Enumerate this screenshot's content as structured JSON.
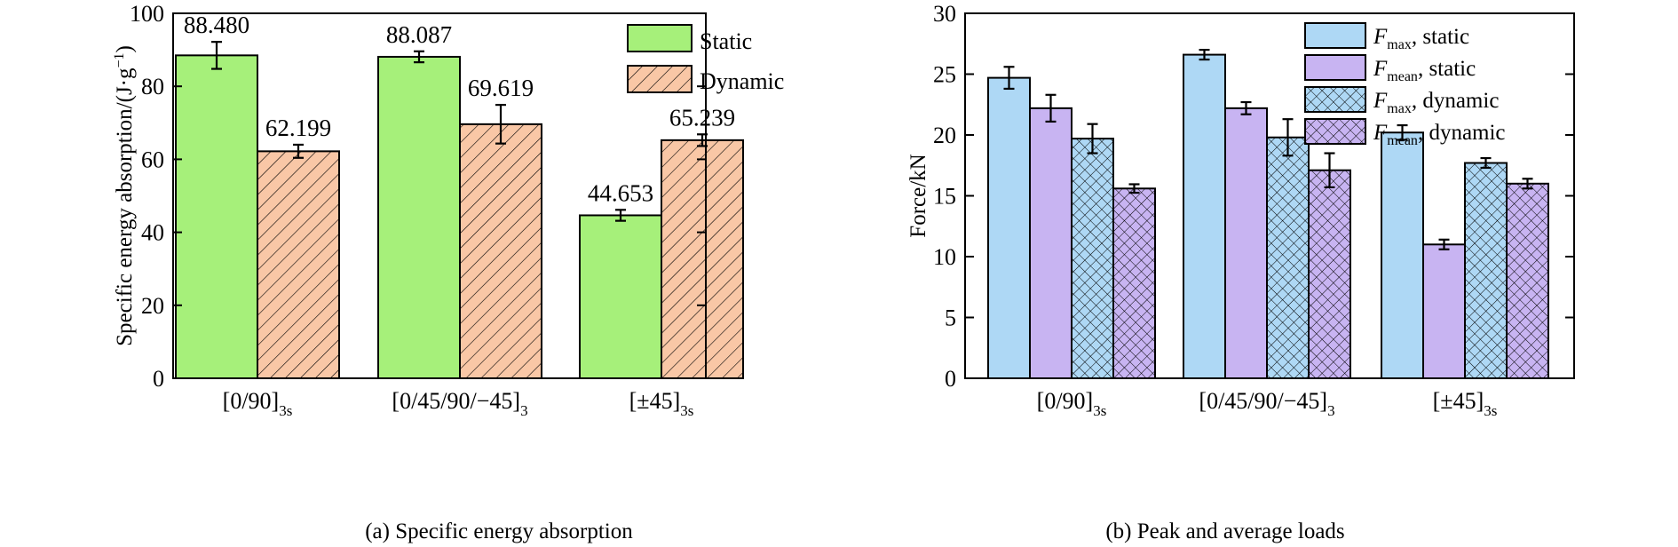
{
  "colors": {
    "static_green": "#a6f07a",
    "dynamic_orange": "#f9c7a6",
    "fmax_static_blue": "#aed8f5",
    "fmean_static_purple": "#c8b4f2",
    "fmax_dynamic_blue": "#aed8f5",
    "fmean_dynamic_purple": "#c8b4f2",
    "hatch_stroke": "#000000"
  },
  "chart_data": [
    {
      "type": "bar",
      "caption": "(a) Specific energy absorption",
      "ylabel": "Specific energy absorption/(J·g",
      "ylabel_sup": "−1",
      "ylabel_close": ")",
      "ylim": [
        0,
        100
      ],
      "yticks": [
        "0",
        "20",
        "40",
        "60",
        "80",
        "100"
      ],
      "ytick_values": [
        0,
        20,
        40,
        60,
        80,
        100
      ],
      "legend_position": "top-right",
      "categories": [
        {
          "main": "[0/90]",
          "sub": "3s"
        },
        {
          "main": "[0/45/90/−45]",
          "sub": "3"
        },
        {
          "main": "[±45]",
          "sub": "3s"
        }
      ],
      "series": [
        {
          "name": "Static",
          "values": [
            88.48,
            88.087,
            44.653
          ],
          "errors": [
            3.7,
            1.5,
            1.5
          ],
          "labels": [
            "88.480",
            "88.087",
            "44.653"
          ],
          "fill": "solid"
        },
        {
          "name": "Dynamic",
          "values": [
            62.199,
            69.619,
            65.239
          ],
          "errors": [
            1.8,
            5.3,
            1.6
          ],
          "labels": [
            "62.199",
            "69.619",
            "65.239"
          ],
          "fill": "hatch-diag"
        }
      ]
    },
    {
      "type": "bar",
      "caption": "(b) Peak and average loads",
      "ylabel": "Force/kN",
      "ylim": [
        0,
        30
      ],
      "yticks": [
        "0",
        "5",
        "10",
        "15",
        "20",
        "25",
        "30"
      ],
      "ytick_values": [
        0,
        5,
        10,
        15,
        20,
        25,
        30
      ],
      "legend_position": "top-right",
      "categories": [
        {
          "main": "[0/90]",
          "sub": "3s"
        },
        {
          "main": "[0/45/90/−45]",
          "sub": "3"
        },
        {
          "main": "[±45]",
          "sub": "3s"
        }
      ],
      "series": [
        {
          "name_main": "F",
          "name_sub": "max",
          "name_rest": ", static",
          "values": [
            24.7,
            26.6,
            20.2
          ],
          "errors": [
            0.9,
            0.4,
            0.6
          ],
          "fill": "solid-blue"
        },
        {
          "name_main": "F",
          "name_sub": "mean",
          "name_rest": ", static",
          "values": [
            22.2,
            22.2,
            11.0
          ],
          "errors": [
            1.1,
            0.5,
            0.4
          ],
          "fill": "solid-purple"
        },
        {
          "name_main": "F",
          "name_sub": "max",
          "name_rest": ", dynamic",
          "values": [
            19.7,
            19.8,
            17.7
          ],
          "errors": [
            1.2,
            1.5,
            0.4
          ],
          "fill": "cross-blue"
        },
        {
          "name_main": "F",
          "name_sub": "mean",
          "name_rest": ", dynamic",
          "values": [
            15.6,
            17.1,
            16.0
          ],
          "errors": [
            0.35,
            1.4,
            0.4
          ],
          "fill": "cross-purple"
        }
      ]
    }
  ]
}
